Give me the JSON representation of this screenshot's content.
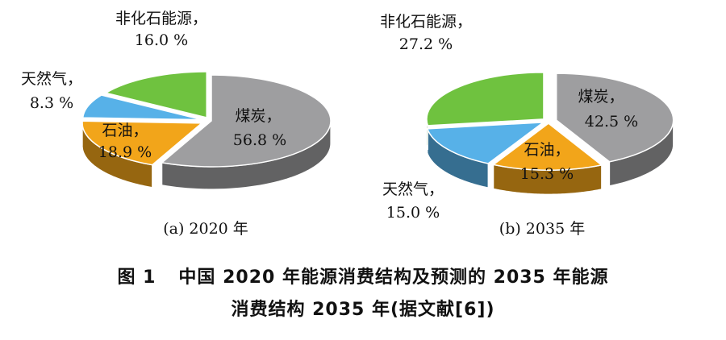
{
  "chart_data": [
    {
      "type": "pie",
      "subtitle": "(a) 2020 年",
      "slices": [
        {
          "name": "煤炭",
          "value": 56.8,
          "label_name": "煤炭，",
          "label_value": "56.8 %",
          "color": "#9e9ea0"
        },
        {
          "name": "石油",
          "value": 18.9,
          "label_name": "石油，",
          "label_value": "18.9 %",
          "color": "#f2a51a"
        },
        {
          "name": "天然气",
          "value": 8.3,
          "label_name": "天然气，",
          "label_value": "8.3 %",
          "color": "#57b1e8"
        },
        {
          "name": "非化石能源",
          "value": 16.0,
          "label_name": "非化石能源，",
          "label_value": "16.0 %",
          "color": "#6fc23f"
        }
      ]
    },
    {
      "type": "pie",
      "subtitle": "(b) 2035 年",
      "slices": [
        {
          "name": "煤炭",
          "value": 42.5,
          "label_name": "煤炭，",
          "label_value": "42.5 %",
          "color": "#9e9ea0"
        },
        {
          "name": "石油",
          "value": 15.3,
          "label_name": "石油，",
          "label_value": "15.3 %",
          "color": "#f2a51a"
        },
        {
          "name": "天然气",
          "value": 15.0,
          "label_name": "天然气，",
          "label_value": "15.0 %",
          "color": "#57b1e8"
        },
        {
          "name": "非化石能源",
          "value": 27.2,
          "label_name": "非化石能源，",
          "label_value": "27.2 %",
          "color": "#6fc23f"
        }
      ]
    }
  ],
  "caption": {
    "figure_no": "图 1",
    "line1": "中国 2020 年能源消费结构及预测的 2035 年能源",
    "line2": "消费结构 2035 年(据文献[6])"
  }
}
